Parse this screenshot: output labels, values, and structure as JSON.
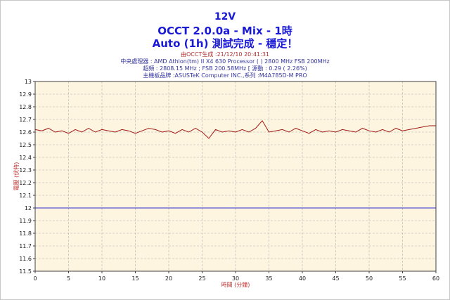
{
  "header": {
    "title": "12V",
    "subtitle": "OCCT 2.0.0a - Mix - 1時",
    "status": "Auto (1h) 測試完成 - 穩定！"
  },
  "info": {
    "generated": "由OCCT生成 :21/12/10 20:41:31",
    "cpu": "中央處理器 : AMD Athlon(tm) II X4 630 Processor (   ) 2800 MHz FSB 200MHz",
    "overclock": "超頻 : 2808.15 MHz ; FSB 200.58MHz [ 源動 : 0.29 ( 2.26%)",
    "motherboard": "主機板品牌 :ASUSTeK Computer INC.,系列 :M4A785D-M PRO"
  },
  "colors": {
    "plot_background": "#fdf5df",
    "series": "#a01818",
    "reference_line": "#2b2bd0",
    "grid": "#b4b4b4"
  },
  "chart_data": {
    "type": "line",
    "xlabel": "時間 (分鐘)",
    "ylabel": "電壓 (伏特)",
    "xlim": [
      0,
      60
    ],
    "ylim": [
      11.5,
      13
    ],
    "x_ticks": [
      "0",
      "5",
      "10",
      "15",
      "20",
      "25",
      "30",
      "35",
      "40",
      "45",
      "50",
      "55",
      "60"
    ],
    "y_ticks": [
      "11.5",
      "11.6",
      "11.7",
      "11.8",
      "11.9",
      "12",
      "12.1",
      "12.2",
      "12.3",
      "12.4",
      "12.5",
      "12.6",
      "12.7",
      "12.8",
      "12.9",
      "13"
    ],
    "grid": true,
    "reference_line": {
      "y": 12
    },
    "series": [
      {
        "x": [
          0,
          1,
          2,
          3,
          4,
          5,
          6,
          7,
          8,
          9,
          10,
          11,
          12,
          13,
          14,
          15,
          16,
          17,
          18,
          19,
          20,
          21,
          22,
          23,
          24,
          25,
          26,
          27,
          28,
          29,
          30,
          31,
          32,
          33,
          34,
          35,
          36,
          37,
          38,
          39,
          40,
          41,
          42,
          43,
          44,
          45,
          46,
          47,
          48,
          49,
          50,
          51,
          52,
          53,
          54,
          55,
          56,
          57,
          58,
          59,
          60
        ],
        "values": [
          12.62,
          12.61,
          12.63,
          12.6,
          12.61,
          12.59,
          12.62,
          12.6,
          12.63,
          12.6,
          12.62,
          12.61,
          12.6,
          12.62,
          12.61,
          12.59,
          12.61,
          12.63,
          12.62,
          12.6,
          12.61,
          12.59,
          12.62,
          12.6,
          12.63,
          12.6,
          12.55,
          12.62,
          12.6,
          12.61,
          12.6,
          12.62,
          12.6,
          12.63,
          12.69,
          12.6,
          12.61,
          12.62,
          12.6,
          12.63,
          12.61,
          12.59,
          12.62,
          12.6,
          12.61,
          12.6,
          12.62,
          12.61,
          12.6,
          12.63,
          12.61,
          12.6,
          12.62,
          12.6,
          12.63,
          12.61,
          12.62,
          12.63,
          12.64,
          12.65,
          12.65
        ]
      }
    ]
  }
}
